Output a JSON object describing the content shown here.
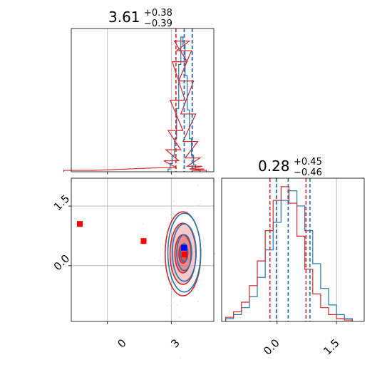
{
  "chart_data": [
    {
      "type": "histogram",
      "panel": "top-left",
      "title": {
        "main": "3.61",
        "plus": "+0.38",
        "minus": "−0.39"
      },
      "xlim": [
        -1.7,
        5.0
      ],
      "grid": true,
      "series": [
        {
          "name": "",
          "color": "#1f77b4",
          "x": [
            2.9,
            3.0,
            3.1,
            3.2,
            3.3,
            3.4,
            3.5,
            3.6,
            3.7,
            3.8,
            3.9,
            4.0,
            4.1,
            4.2,
            4.3
          ],
          "density": [
            0.02,
            0.06,
            0.12,
            0.24,
            0.46,
            0.78,
            0.98,
            0.92,
            0.7,
            0.45,
            0.24,
            0.12,
            0.05,
            0.02,
            0.01
          ]
        },
        {
          "name": "",
          "color": "#d62728",
          "x": [
            -1.7,
            -1.0,
            2.9,
            3.0,
            3.1,
            3.2,
            3.3,
            3.4,
            3.5,
            3.6,
            3.7,
            3.8,
            3.9,
            4.0,
            4.1,
            4.2,
            4.3
          ],
          "density": [
            0.01,
            0.01,
            0.03,
            0.08,
            0.16,
            0.3,
            0.52,
            0.8,
            0.95,
            0.88,
            0.66,
            0.42,
            0.22,
            0.1,
            0.04,
            0.02,
            0.01
          ]
        }
      ],
      "quantile_lines": [
        {
          "color": "#d62728",
          "x": [
            3.22,
            3.61,
            3.99
          ]
        },
        {
          "color": "#1f77b4",
          "x": [
            3.61,
            3.98
          ]
        }
      ]
    },
    {
      "type": "contour",
      "panel": "bottom-left",
      "xticks": [
        "0",
        "3"
      ],
      "yticks": [
        "1.5",
        "0.0"
      ],
      "xlim": [
        -1.7,
        5.0
      ],
      "ylim": [
        -1.4,
        2.2
      ],
      "grid": true,
      "contours": [
        {
          "color": "#d62728",
          "center": [
            3.55,
            0.3
          ],
          "sigma": [
            0.38,
            0.48
          ]
        },
        {
          "color": "#1f77b4",
          "center": [
            3.61,
            0.33
          ],
          "sigma": [
            0.35,
            0.45
          ]
        }
      ],
      "markers": [
        {
          "color": "#ff0000",
          "x": -1.3,
          "y": 1.05
        },
        {
          "color": "#ff0000",
          "x": 1.7,
          "y": 0.62
        },
        {
          "color": "#ff0000",
          "x": 3.62,
          "y": 0.28
        },
        {
          "color": "#0000ff",
          "x": 3.6,
          "y": 0.45
        }
      ]
    },
    {
      "type": "histogram",
      "panel": "bottom-right",
      "title": {
        "main": "0.28",
        "plus": "+0.45",
        "minus": "−0.46"
      },
      "xticks": [
        "0.0",
        "1.5"
      ],
      "xlim": [
        -1.4,
        2.2
      ],
      "grid": true,
      "series": [
        {
          "name": "",
          "color": "#1f77b4",
          "x": [
            -1.2,
            -1.0,
            -0.8,
            -0.6,
            -0.4,
            -0.2,
            0.0,
            0.2,
            0.4,
            0.6,
            0.8,
            1.0,
            1.2,
            1.4,
            1.6,
            1.8
          ],
          "density": [
            0.02,
            0.05,
            0.1,
            0.18,
            0.32,
            0.52,
            0.72,
            0.88,
            0.95,
            0.84,
            0.66,
            0.42,
            0.24,
            0.12,
            0.05,
            0.02
          ]
        },
        {
          "name": "",
          "color": "#d62728",
          "x": [
            -1.2,
            -1.0,
            -0.8,
            -0.6,
            -0.4,
            -0.2,
            0.0,
            0.2,
            0.4,
            0.6,
            0.8,
            1.0,
            1.2,
            1.4,
            1.6,
            1.8
          ],
          "density": [
            0.03,
            0.07,
            0.14,
            0.26,
            0.44,
            0.66,
            0.88,
            0.98,
            0.86,
            0.62,
            0.38,
            0.2,
            0.1,
            0.05,
            0.02,
            0.01
          ]
        }
      ],
      "quantile_lines": [
        {
          "color": "#d62728",
          "x": [
            -0.18,
            0.28,
            0.73
          ]
        },
        {
          "color": "#1f77b4",
          "x": [
            -0.02,
            0.28,
            0.83
          ]
        }
      ]
    }
  ]
}
